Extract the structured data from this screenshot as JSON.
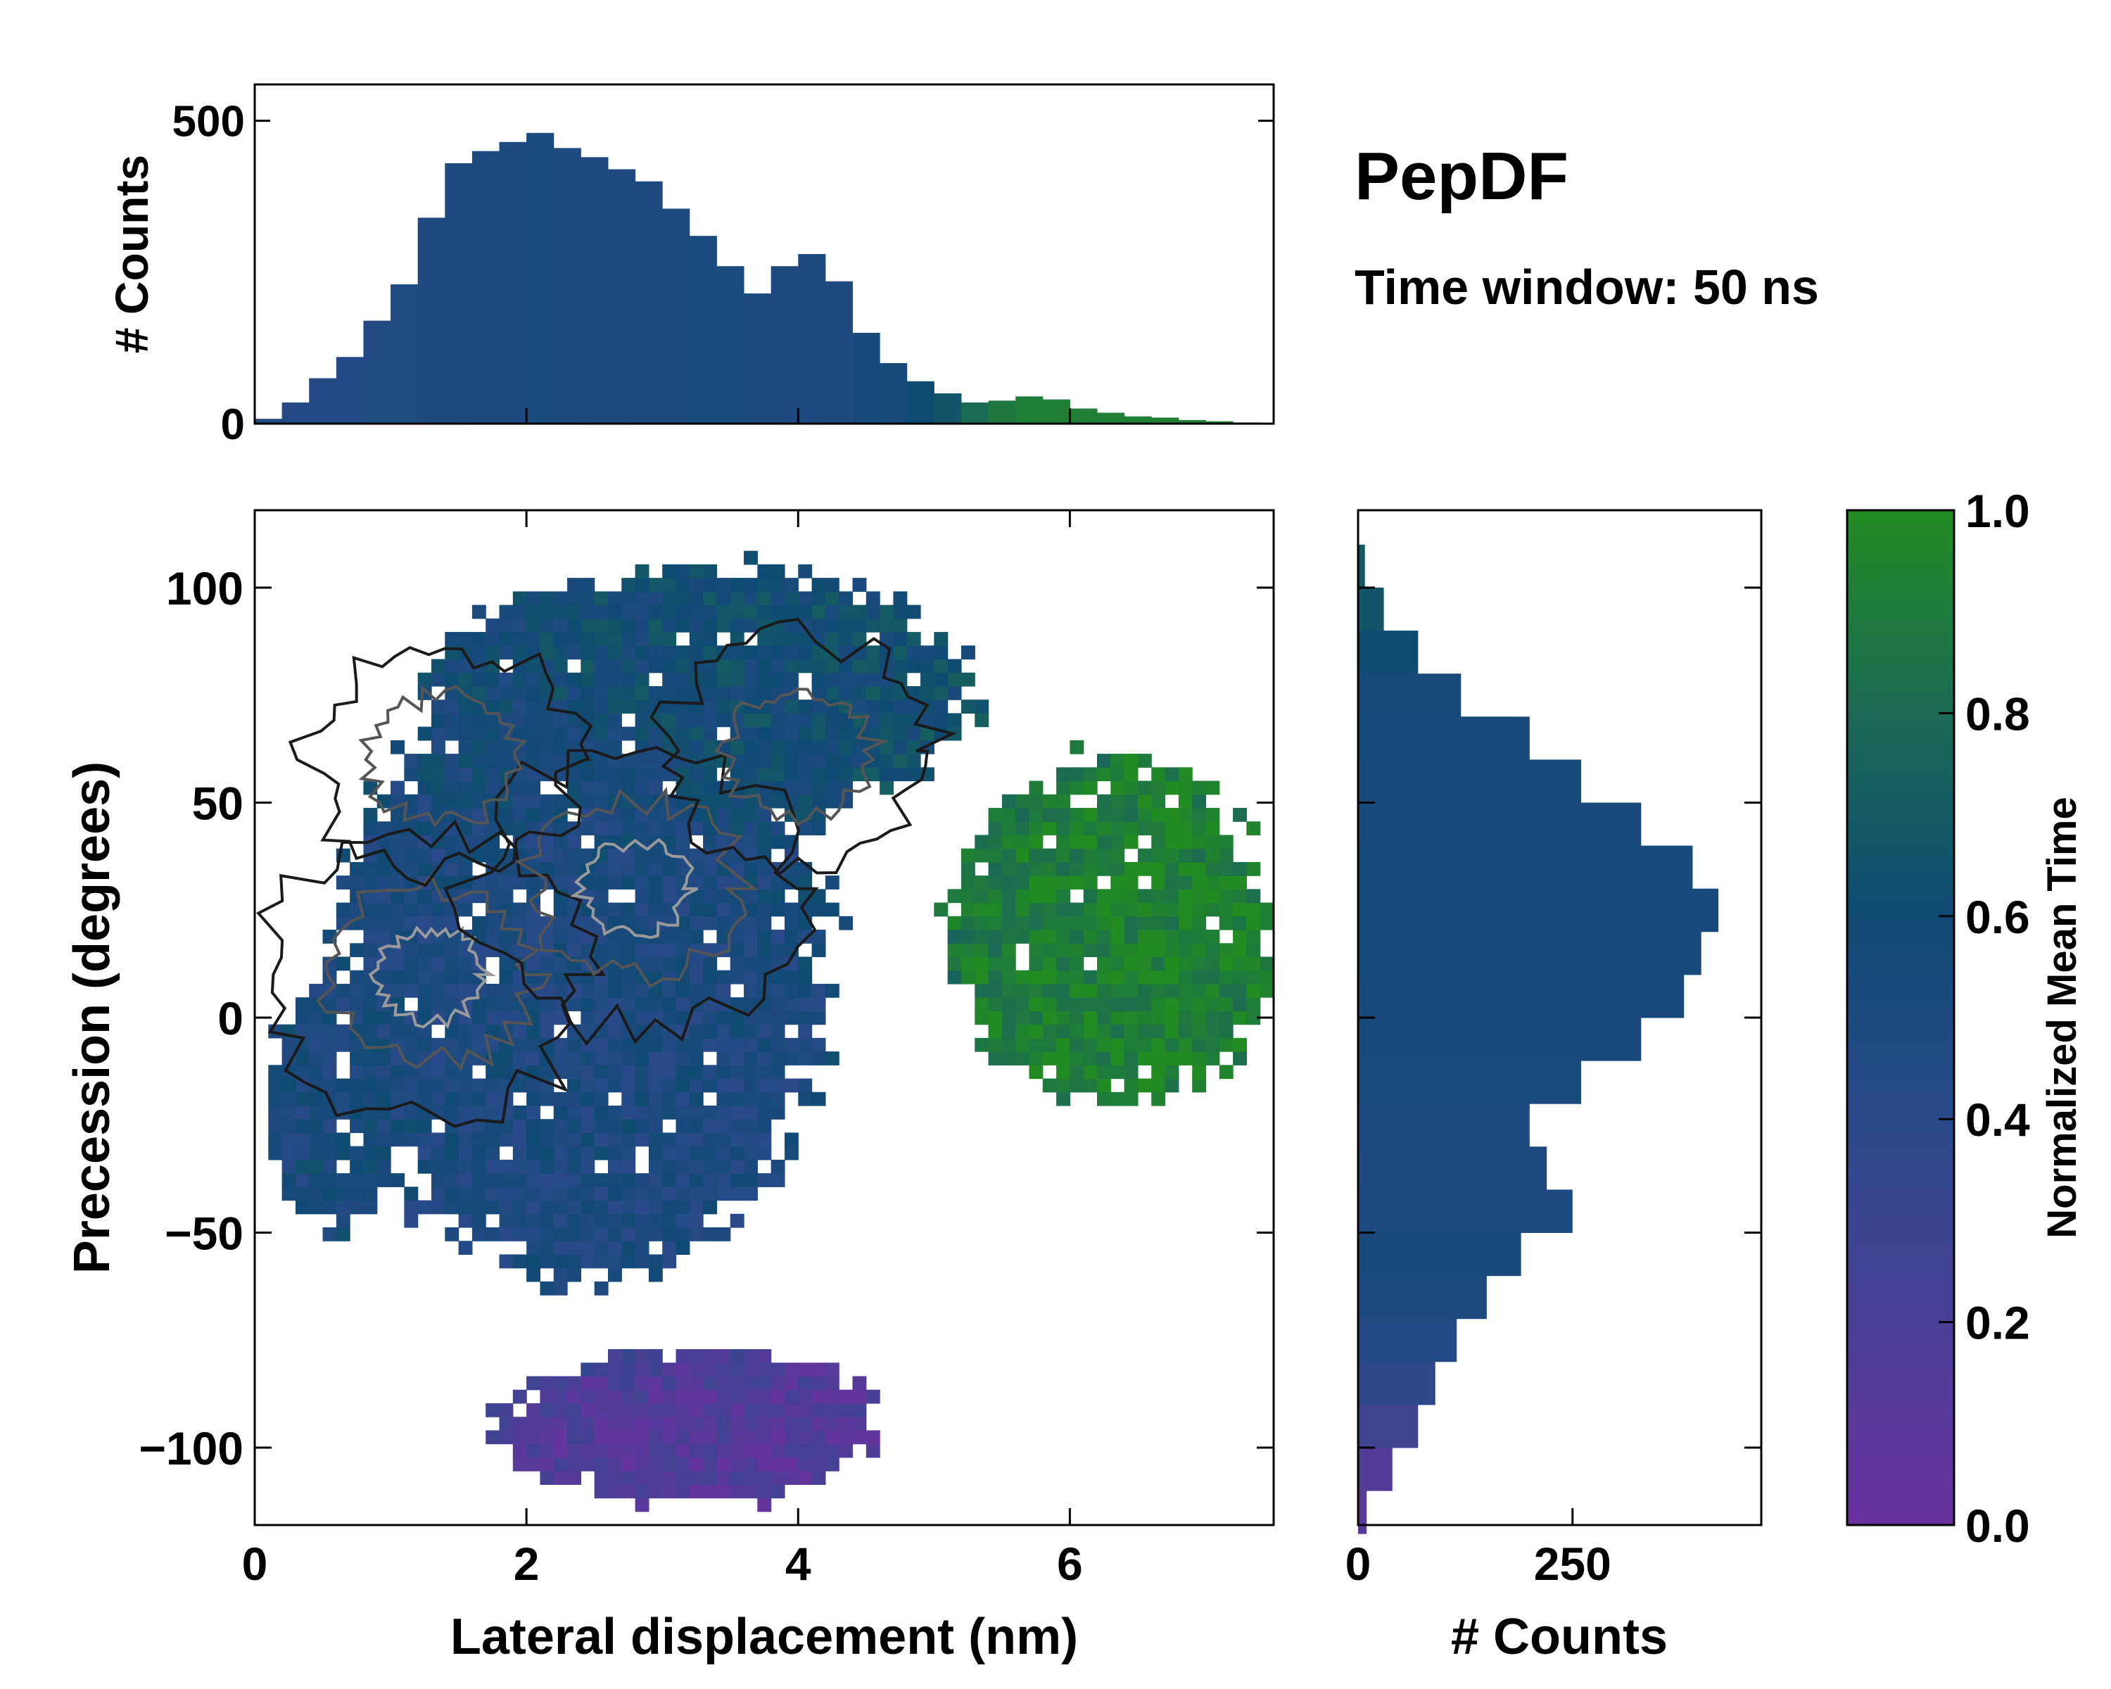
{
  "chart_data": [
    {
      "panel": "top-histogram",
      "type": "bar",
      "title": "PepDF",
      "subtitle": "Time window: 50 ns",
      "xlabel": "",
      "ylabel": "# Counts",
      "xlim": [
        0,
        7.5
      ],
      "ylim": [
        0,
        560
      ],
      "yticks": [
        0,
        500
      ],
      "ytick_labels": [
        "0",
        "500"
      ],
      "color_by": "normalized mean time",
      "bins": [
        {
          "x": 0.1,
          "count": 8,
          "t": 0.45
        },
        {
          "x": 0.3,
          "count": 35,
          "t": 0.45
        },
        {
          "x": 0.5,
          "count": 75,
          "t": 0.45
        },
        {
          "x": 0.7,
          "count": 110,
          "t": 0.45
        },
        {
          "x": 0.9,
          "count": 170,
          "t": 0.46
        },
        {
          "x": 1.1,
          "count": 230,
          "t": 0.47
        },
        {
          "x": 1.3,
          "count": 340,
          "t": 0.48
        },
        {
          "x": 1.5,
          "count": 430,
          "t": 0.49
        },
        {
          "x": 1.7,
          "count": 450,
          "t": 0.5
        },
        {
          "x": 1.9,
          "count": 465,
          "t": 0.5
        },
        {
          "x": 2.1,
          "count": 480,
          "t": 0.51
        },
        {
          "x": 2.3,
          "count": 455,
          "t": 0.5
        },
        {
          "x": 2.5,
          "count": 440,
          "t": 0.49
        },
        {
          "x": 2.7,
          "count": 420,
          "t": 0.49
        },
        {
          "x": 2.9,
          "count": 400,
          "t": 0.5
        },
        {
          "x": 3.1,
          "count": 355,
          "t": 0.5
        },
        {
          "x": 3.3,
          "count": 310,
          "t": 0.51
        },
        {
          "x": 3.5,
          "count": 260,
          "t": 0.51
        },
        {
          "x": 3.7,
          "count": 215,
          "t": 0.5
        },
        {
          "x": 3.9,
          "count": 260,
          "t": 0.49
        },
        {
          "x": 4.1,
          "count": 280,
          "t": 0.49
        },
        {
          "x": 4.3,
          "count": 235,
          "t": 0.5
        },
        {
          "x": 4.5,
          "count": 150,
          "t": 0.52
        },
        {
          "x": 4.7,
          "count": 100,
          "t": 0.55
        },
        {
          "x": 4.9,
          "count": 70,
          "t": 0.6
        },
        {
          "x": 5.1,
          "count": 50,
          "t": 0.66
        },
        {
          "x": 5.3,
          "count": 35,
          "t": 0.8
        },
        {
          "x": 5.5,
          "count": 38,
          "t": 0.88
        },
        {
          "x": 5.7,
          "count": 45,
          "t": 0.92
        },
        {
          "x": 5.9,
          "count": 40,
          "t": 0.93
        },
        {
          "x": 6.1,
          "count": 25,
          "t": 0.93
        },
        {
          "x": 6.3,
          "count": 18,
          "t": 0.93
        },
        {
          "x": 6.5,
          "count": 12,
          "t": 0.93
        },
        {
          "x": 6.7,
          "count": 10,
          "t": 0.93
        },
        {
          "x": 6.9,
          "count": 6,
          "t": 0.93
        },
        {
          "x": 7.1,
          "count": 4,
          "t": 0.93
        },
        {
          "x": 7.3,
          "count": 2,
          "t": 0.93
        }
      ]
    },
    {
      "panel": "main-heatmap",
      "type": "heatmap",
      "xlabel": "Lateral displacement (nm)",
      "ylabel": "Precession (degrees)",
      "xlim": [
        0,
        7.5
      ],
      "ylim": [
        -118,
        118
      ],
      "xticks": [
        0,
        2,
        4,
        6
      ],
      "xtick_labels": [
        "0",
        "2",
        "4",
        "6"
      ],
      "yticks": [
        -100,
        -50,
        0,
        50,
        100
      ],
      "ytick_labels": [
        "−100",
        "−50",
        "0",
        "50",
        "100"
      ],
      "colorbar_label": "Normalized Mean Time",
      "regions": [
        {
          "name": "central-cluster",
          "center": [
            2.4,
            10
          ],
          "radius": [
            1.8,
            70
          ],
          "t": 0.5
        },
        {
          "name": "upper-lobe",
          "center": [
            3.3,
            75
          ],
          "radius": [
            2.0,
            30
          ],
          "t": 0.62
        },
        {
          "name": "lower-lobe",
          "center": [
            3.2,
            -95
          ],
          "radius": [
            1.4,
            18
          ],
          "t": 0.12
        },
        {
          "name": "right-lobe",
          "center": [
            6.3,
            20
          ],
          "radius": [
            1.2,
            40
          ],
          "t": 0.93
        },
        {
          "name": "left-edge",
          "center": [
            0.6,
            -20
          ],
          "radius": [
            0.5,
            30
          ],
          "t": 0.55
        }
      ],
      "density_peaks": [
        {
          "x": 1.3,
          "y": 10,
          "level": "high"
        },
        {
          "x": 2.8,
          "y": 30,
          "level": "high"
        },
        {
          "x": 1.4,
          "y": 60,
          "level": "medium"
        },
        {
          "x": 4.0,
          "y": 62,
          "level": "medium"
        }
      ]
    },
    {
      "panel": "right-histogram",
      "type": "bar",
      "orientation": "horizontal",
      "xlabel": "# Counts",
      "xlim": [
        0,
        470
      ],
      "xticks": [
        0,
        250
      ],
      "xtick_labels": [
        "0",
        "250"
      ],
      "ylim": [
        -118,
        118
      ],
      "bins": [
        {
          "y": -115,
          "count": 10,
          "t": 0.12
        },
        {
          "y": -105,
          "count": 40,
          "t": 0.15
        },
        {
          "y": -95,
          "count": 70,
          "t": 0.25
        },
        {
          "y": -85,
          "count": 90,
          "t": 0.38
        },
        {
          "y": -75,
          "count": 115,
          "t": 0.45
        },
        {
          "y": -65,
          "count": 150,
          "t": 0.5
        },
        {
          "y": -55,
          "count": 190,
          "t": 0.52
        },
        {
          "y": -45,
          "count": 250,
          "t": 0.5
        },
        {
          "y": -35,
          "count": 220,
          "t": 0.49
        },
        {
          "y": -25,
          "count": 200,
          "t": 0.5
        },
        {
          "y": -15,
          "count": 260,
          "t": 0.51
        },
        {
          "y": -5,
          "count": 330,
          "t": 0.52
        },
        {
          "y": 5,
          "count": 380,
          "t": 0.52
        },
        {
          "y": 15,
          "count": 400,
          "t": 0.53
        },
        {
          "y": 25,
          "count": 420,
          "t": 0.54
        },
        {
          "y": 35,
          "count": 390,
          "t": 0.53
        },
        {
          "y": 45,
          "count": 330,
          "t": 0.52
        },
        {
          "y": 55,
          "count": 260,
          "t": 0.52
        },
        {
          "y": 65,
          "count": 200,
          "t": 0.53
        },
        {
          "y": 75,
          "count": 120,
          "t": 0.55
        },
        {
          "y": 85,
          "count": 70,
          "t": 0.6
        },
        {
          "y": 95,
          "count": 30,
          "t": 0.66
        },
        {
          "y": 105,
          "count": 8,
          "t": 0.68
        }
      ]
    },
    {
      "panel": "colorbar",
      "type": "colorbar",
      "label": "Normalized Mean Time",
      "range": [
        0.0,
        1.0
      ],
      "ticks": [
        0.0,
        0.2,
        0.4,
        0.6,
        0.8,
        1.0
      ],
      "tick_labels": [
        "0.0",
        "0.2",
        "0.4",
        "0.6",
        "0.8",
        "1.0"
      ],
      "colormap": [
        "#6a329f",
        "#4a3f96",
        "#2a4a8a",
        "#0f4a73",
        "#1b6a55",
        "#228b22"
      ]
    }
  ]
}
